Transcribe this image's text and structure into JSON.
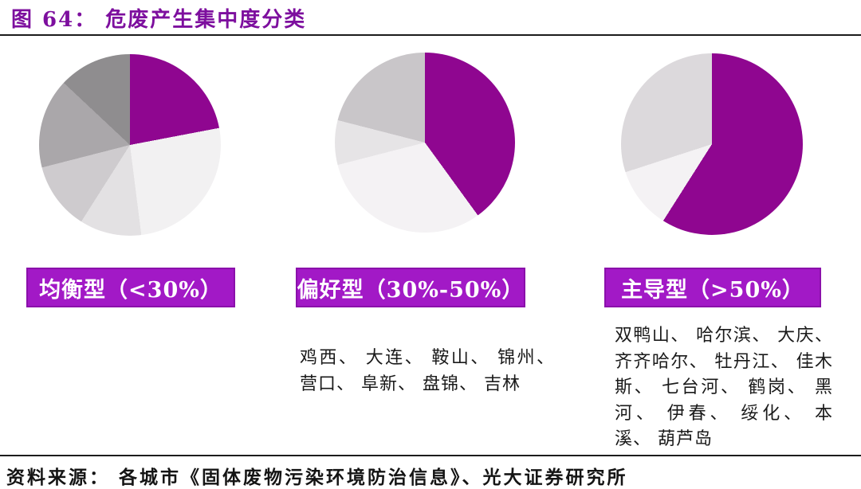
{
  "figure": {
    "title": "图 64： 危废产生集中度分类",
    "source": "资料来源： 各城市《固体废物污染环境防治信息》、光大证券研究所"
  },
  "colors": {
    "title_text": "#7d0f9e",
    "pie_purple": "#8f0690",
    "label_background": "#a219c6",
    "label_border": "#8b10ab",
    "label_text": "#ffffff",
    "divider": "#1c1c1c"
  },
  "chart_data": [
    {
      "type": "pie",
      "title": "均衡型（<30%）",
      "legend_position": "none",
      "slices": [
        {
          "label": "largest-share",
          "percent": 22,
          "color": "#8f0690"
        },
        {
          "label": "share-2",
          "percent": 26,
          "color": "#f2f1f2"
        },
        {
          "label": "share-3",
          "percent": 11,
          "color": "#e3e1e3"
        },
        {
          "label": "share-4",
          "percent": 12,
          "color": "#cecbce"
        },
        {
          "label": "share-5",
          "percent": 16,
          "color": "#aaa7aa"
        },
        {
          "label": "share-6",
          "percent": 13,
          "color": "#8f8d8f"
        }
      ]
    },
    {
      "type": "pie",
      "title": "偏好型（30%-50%）",
      "legend_position": "none",
      "cities": "鸡西、 大连、 鞍山、 锦州、 营口、 阜新、 盘锦、 吉林",
      "slices": [
        {
          "label": "largest-share",
          "percent": 40,
          "color": "#8f0690"
        },
        {
          "label": "share-2",
          "percent": 31,
          "color": "#f4f2f4"
        },
        {
          "label": "share-3",
          "percent": 8,
          "color": "#e6e4e6"
        },
        {
          "label": "share-4",
          "percent": 21,
          "color": "#c9c6c9"
        }
      ]
    },
    {
      "type": "pie",
      "title": "主导型（>50%）",
      "legend_position": "none",
      "cities": "双鸭山、 哈尔滨、 大庆、 齐齐哈尔、 牡丹江、 佳木斯、 七台河、 鹤岗、 黑河、 伊春、 绥化、 本溪、 葫芦岛",
      "slices": [
        {
          "label": "largest-share",
          "percent": 59,
          "color": "#8f0690"
        },
        {
          "label": "share-2",
          "percent": 11,
          "color": "#f4f2f4"
        },
        {
          "label": "share-3",
          "percent": 30,
          "color": "#dcd9dc"
        }
      ]
    }
  ]
}
